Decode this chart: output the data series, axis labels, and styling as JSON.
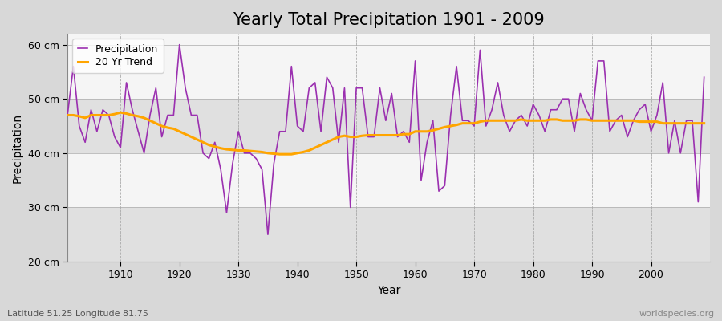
{
  "title": "Yearly Total Precipitation 1901 - 2009",
  "ylabel": "Precipitation",
  "xlabel": "Year",
  "bottom_left_label": "Latitude 51.25 Longitude 81.75",
  "bottom_right_label": "worldspecies.org",
  "ylim": [
    20,
    62
  ],
  "yticks": [
    20,
    30,
    40,
    50,
    60
  ],
  "ytick_labels": [
    "20 cm",
    "30 cm",
    "40 cm",
    "50 cm",
    "60 cm"
  ],
  "years": [
    1901,
    1902,
    1903,
    1904,
    1905,
    1906,
    1907,
    1908,
    1909,
    1910,
    1911,
    1912,
    1913,
    1914,
    1915,
    1916,
    1917,
    1918,
    1919,
    1920,
    1921,
    1922,
    1923,
    1924,
    1925,
    1926,
    1927,
    1928,
    1929,
    1930,
    1931,
    1932,
    1933,
    1934,
    1935,
    1936,
    1937,
    1938,
    1939,
    1940,
    1941,
    1942,
    1943,
    1944,
    1945,
    1946,
    1947,
    1948,
    1949,
    1950,
    1951,
    1952,
    1953,
    1954,
    1955,
    1956,
    1957,
    1958,
    1959,
    1960,
    1961,
    1962,
    1963,
    1964,
    1965,
    1966,
    1967,
    1968,
    1969,
    1970,
    1971,
    1972,
    1973,
    1974,
    1975,
    1976,
    1977,
    1978,
    1979,
    1980,
    1981,
    1982,
    1983,
    1984,
    1985,
    1986,
    1987,
    1988,
    1989,
    1990,
    1991,
    1992,
    1993,
    1994,
    1995,
    1996,
    1997,
    1998,
    1999,
    2000,
    2001,
    2002,
    2003,
    2004,
    2005,
    2006,
    2007,
    2008,
    2009
  ],
  "precipitation": [
    47,
    56,
    45,
    42,
    48,
    44,
    48,
    47,
    43,
    41,
    53,
    48,
    44,
    40,
    47,
    52,
    43,
    47,
    47,
    60,
    52,
    47,
    47,
    40,
    39,
    42,
    37,
    29,
    38,
    44,
    40,
    40,
    39,
    37,
    25,
    38,
    44,
    44,
    56,
    45,
    44,
    52,
    53,
    44,
    54,
    52,
    42,
    52,
    30,
    52,
    52,
    43,
    43,
    52,
    46,
    51,
    43,
    44,
    42,
    57,
    35,
    42,
    46,
    33,
    34,
    47,
    56,
    46,
    46,
    45,
    59,
    45,
    48,
    53,
    47,
    44,
    46,
    47,
    45,
    49,
    47,
    44,
    48,
    48,
    50,
    50,
    44,
    51,
    48,
    46,
    57,
    57,
    44,
    46,
    47,
    43,
    46,
    48,
    49,
    44,
    47,
    53,
    40,
    46,
    40,
    46,
    46,
    31,
    54
  ],
  "trend": [
    47.0,
    47.0,
    46.8,
    46.5,
    47.0,
    47.0,
    47.0,
    47.0,
    47.2,
    47.5,
    47.3,
    47.0,
    46.8,
    46.5,
    46.0,
    45.5,
    45.0,
    44.7,
    44.5,
    44.0,
    43.5,
    43.0,
    42.5,
    42.0,
    41.5,
    41.2,
    40.9,
    40.7,
    40.6,
    40.5,
    40.5,
    40.4,
    40.3,
    40.2,
    40.0,
    39.9,
    39.8,
    39.8,
    39.8,
    40.0,
    40.2,
    40.5,
    41.0,
    41.5,
    42.0,
    42.5,
    43.0,
    43.2,
    43.0,
    43.0,
    43.2,
    43.3,
    43.3,
    43.3,
    43.3,
    43.3,
    43.3,
    43.5,
    43.5,
    44.0,
    44.0,
    44.0,
    44.2,
    44.5,
    44.8,
    45.0,
    45.2,
    45.5,
    45.5,
    45.5,
    45.8,
    46.0,
    46.0,
    46.0,
    46.0,
    46.0,
    46.0,
    46.2,
    46.0,
    46.0,
    46.0,
    46.0,
    46.2,
    46.2,
    46.0,
    46.0,
    46.0,
    46.2,
    46.2,
    46.0,
    46.0,
    46.0,
    46.0,
    46.0,
    46.0,
    46.0,
    46.0,
    45.8,
    45.8,
    45.8,
    45.8,
    45.5,
    45.5,
    45.5,
    45.5,
    45.5,
    45.5,
    45.5,
    45.5
  ],
  "precip_color": "#9B30B0",
  "trend_color": "#FFA500",
  "fig_bg_color": "#D8D8D8",
  "plot_bg_light": "#F5F5F5",
  "plot_bg_dark": "#E0E0E0",
  "grid_color_h": "#BBBBBB",
  "grid_color_v": "#AAAAAA",
  "title_fontsize": 15,
  "axis_label_fontsize": 10,
  "tick_fontsize": 9,
  "legend_fontsize": 9
}
